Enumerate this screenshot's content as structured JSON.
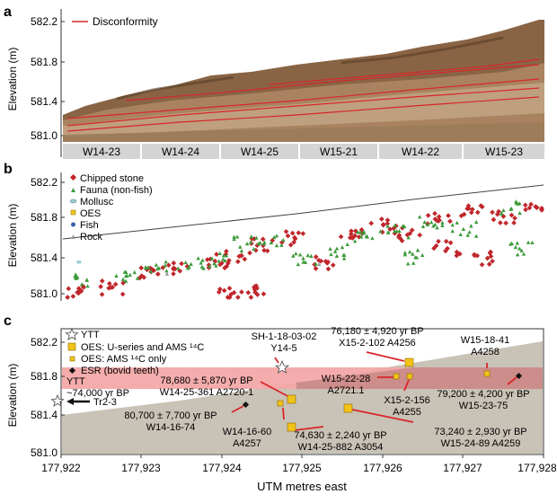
{
  "panels": {
    "a": {
      "label": "a",
      "ylabel": "Elevation (m)",
      "yticks": [
        "582.2",
        "581.8",
        "581.4",
        "581.0"
      ],
      "legend": "Disconformity",
      "photo_colors": {
        "sky": "#ffffff",
        "soil_dark": "#7d5a3c",
        "soil_mid": "#a9835f",
        "soil_light": "#c7ad8c",
        "line": "#d8262a"
      },
      "sections": [
        "W14-23",
        "W14-24",
        "W14-25",
        "W15-21",
        "W14-22",
        "W15-23"
      ]
    },
    "b": {
      "label": "b",
      "ylabel": "Elevation (m)",
      "yticks": [
        "582.2",
        "581.8",
        "581.4",
        "581.0"
      ],
      "legend": [
        {
          "label": "Chipped stone",
          "icon": "diamond-icon",
          "color": "#c0262b"
        },
        {
          "label": "Fauna (non-fish)",
          "icon": "triangle-icon",
          "color": "#3c9a3b"
        },
        {
          "label": "Mollusc",
          "icon": "ellipse-icon",
          "color": "#9ccfd8"
        },
        {
          "label": "OES",
          "icon": "square-icon",
          "color": "#f2c318"
        },
        {
          "label": "Fish",
          "icon": "circle-icon",
          "color": "#3a5fb0"
        },
        {
          "label": "Rock",
          "icon": "triangle-icon",
          "color": "#9a9a9a"
        }
      ]
    },
    "c": {
      "label": "c",
      "ylabel": "Elevation (m)",
      "xlabel": "UTM metres east",
      "yticks": [
        "582.2",
        "581.8",
        "581.4",
        "581.0"
      ],
      "xticks": [
        "177,922",
        "177,923",
        "177,924",
        "177,925",
        "177,926",
        "177,927",
        "177,928"
      ],
      "legend": [
        {
          "label": "YTT",
          "icon": "star-icon",
          "color": "#ffffff"
        },
        {
          "label": "OES: U-series and AMS ¹⁴C",
          "icon": "square-icon",
          "color": "#f2c318"
        },
        {
          "label": "OES: AMS ¹⁴C only",
          "icon": "square-icon",
          "color": "#f2c318"
        },
        {
          "label": "ESR (bovid teeth)",
          "icon": "diamond-icon",
          "color": "#111111"
        }
      ],
      "colors": {
        "band": "#f3a8a8",
        "band_dark": "#c98a86",
        "sediment": "#c9c2b6",
        "arrow": "#d8262a"
      },
      "ytt_band_label": [
        "YTT",
        "~74,000 yr BP"
      ],
      "tr_label": "Tr2-3",
      "annotations": [
        {
          "id": "sh1",
          "lines": [
            "SH-1-18-03-02",
            "Y14-5"
          ]
        },
        {
          "id": "a4256",
          "lines": [
            "76,180 ± 4,920 yr BP",
            "X15-2-102 A4256"
          ]
        },
        {
          "id": "w1518",
          "lines": [
            "W15-18-41",
            "A4258"
          ]
        },
        {
          "id": "a2720",
          "lines": [
            "78,680 ± 5,870 yr BP",
            "W14-25-361 A2720-1"
          ]
        },
        {
          "id": "w1522",
          "lines": [
            "W15-22-28",
            "A2721.1"
          ]
        },
        {
          "id": "x15156",
          "lines": [
            "X15-2-156",
            "A4255"
          ]
        },
        {
          "id": "w1523",
          "lines": [
            "79,200 ± 4,200 yr BP",
            "W15-23-75"
          ]
        },
        {
          "id": "w1416",
          "lines": [
            "80,700 ± 7,700 yr BP",
            "W14-16-74"
          ]
        },
        {
          "id": "a4257",
          "lines": [
            "W14-16-60",
            "A4257"
          ]
        },
        {
          "id": "a3054",
          "lines": [
            "74,630 ± 2,240 yr BP",
            "W14-25-882 A3054"
          ]
        },
        {
          "id": "a4259",
          "lines": [
            "73,240 ± 2,930 yr BP",
            "W15-24-89 A4259"
          ]
        }
      ]
    }
  },
  "chart_data": [
    {
      "type": "scatter",
      "panel": "b",
      "ylabel": "Elevation (m)",
      "ylim": [
        581.0,
        582.2
      ],
      "xlim": [
        177922,
        177928
      ],
      "series": [
        {
          "name": "Chipped stone",
          "points": [
            [
              177922.2,
              581.07
            ],
            [
              177922.6,
              581.12
            ],
            [
              177923.1,
              581.28
            ],
            [
              177923.4,
              581.31
            ],
            [
              177923.9,
              581.39
            ],
            [
              177924.2,
              581.44
            ],
            [
              177924.5,
              581.55
            ],
            [
              177924.9,
              581.62
            ],
            [
              177925.3,
              581.37
            ],
            [
              177925.6,
              581.7
            ],
            [
              177926.0,
              581.76
            ],
            [
              177926.3,
              581.66
            ],
            [
              177926.7,
              581.81
            ],
            [
              177927.1,
              581.89
            ],
            [
              177927.5,
              581.85
            ],
            [
              177927.9,
              581.95
            ],
            [
              177924.1,
              581.05
            ],
            [
              177924.4,
              581.07
            ],
            [
              177926.8,
              581.52
            ],
            [
              177927.3,
              581.42
            ]
          ]
        },
        {
          "name": "Fauna (non-fish)",
          "points": [
            [
              177922.3,
              581.2
            ],
            [
              177922.8,
              581.24
            ],
            [
              177923.2,
              581.32
            ],
            [
              177923.6,
              581.36
            ],
            [
              177924.0,
              581.41
            ],
            [
              177924.3,
              581.57
            ],
            [
              177924.6,
              581.58
            ],
            [
              177925.0,
              581.42
            ],
            [
              177925.4,
              581.49
            ],
            [
              177925.8,
              581.64
            ],
            [
              177926.2,
              581.7
            ],
            [
              177926.6,
              581.79
            ],
            [
              177927.0,
              581.72
            ],
            [
              177927.6,
              581.93
            ],
            [
              177926.4,
              581.43
            ],
            [
              177927.7,
              581.52
            ]
          ]
        },
        {
          "name": "Mollusc",
          "points": [
            [
              177922.2,
              581.38
            ]
          ]
        },
        {
          "name": "Rock",
          "points": [
            [
              177923.3,
              581.26
            ],
            [
              177925.2,
              581.36
            ]
          ]
        }
      ]
    },
    {
      "type": "scatter",
      "panel": "c",
      "xlabel": "UTM metres east",
      "ylabel": "Elevation (m)",
      "xlim": [
        177922,
        177928
      ],
      "ylim": [
        581.0,
        582.2
      ],
      "series": [
        {
          "name": "YTT",
          "points": [
            [
              177924.8,
              581.96
            ],
            [
              177922.0,
              581.63
            ]
          ]
        },
        {
          "name": "OES: U-series and AMS ¹⁴C",
          "points": [
            [
              177926.3,
              581.96
            ],
            [
              177925.0,
              581.56
            ],
            [
              177925.6,
              581.52
            ],
            [
              177925.0,
              581.28
            ]
          ]
        },
        {
          "name": "OES: AMS ¹⁴C only",
          "points": [
            [
              177926.1,
              581.84
            ],
            [
              177926.3,
              581.84
            ],
            [
              177927.3,
              581.85
            ],
            [
              177924.6,
              581.55
            ]
          ]
        },
        {
          "name": "ESR (bovid teeth)",
          "points": [
            [
              177924.3,
              581.52
            ],
            [
              177927.6,
              581.83
            ]
          ]
        }
      ],
      "ytt_band": [
        581.63,
        581.88
      ]
    }
  ]
}
